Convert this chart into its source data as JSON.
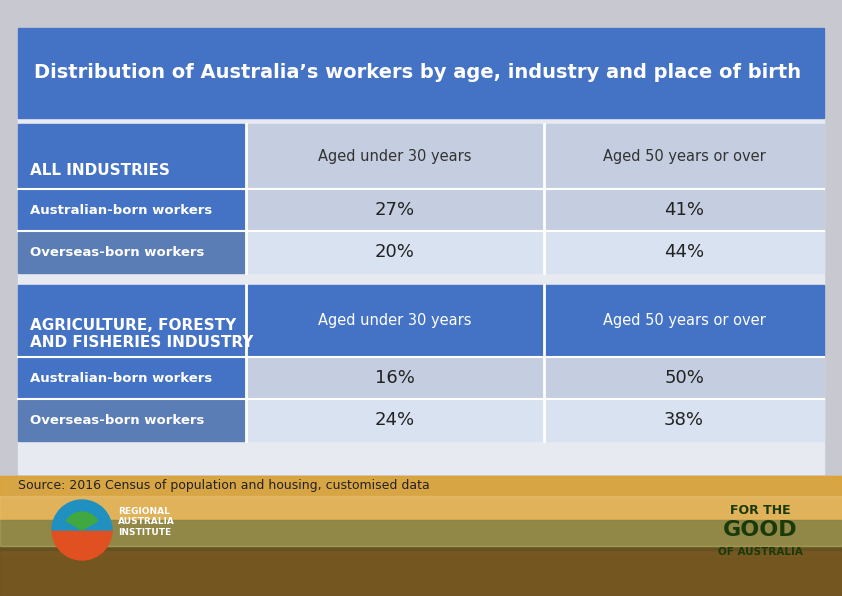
{
  "title": "Distribution of Australia’s workers by age, industry and place of birth",
  "title_bg_color": "#4472C4",
  "title_text_color": "#FFFFFF",
  "source_text": "Source: 2016 Census of population and housing, customised data",
  "outer_bg_color": "#C8C8D0",
  "table_bg_color": "#E8EAF0",
  "blue_header_bg": "#4472C4",
  "blue_header_text": "#FFFFFF",
  "light_blue_bg1": "#C5CEE0",
  "light_blue_bg2": "#D8E2F0",
  "medium_blue_label": "#5B7DB5",
  "data_text_color": "#222222",
  "col_header_text_color": "#333333",
  "table": {
    "section1_label": "ALL INDUSTRIES",
    "section2_label": "AGRICULTURE, FORESTY\nAND FISHERIES INDUSTRY",
    "col1_header": "Aged under 30 years",
    "col2_header": "Aged 50 years or over",
    "section1_rows": [
      {
        "label": "Australian-born workers",
        "col1": "27%",
        "col2": "41%"
      },
      {
        "label": "Overseas-born workers",
        "col1": "20%",
        "col2": "44%"
      }
    ],
    "section2_rows": [
      {
        "label": "Australian-born workers",
        "col1": "16%",
        "col2": "50%"
      },
      {
        "label": "Overseas-born workers",
        "col1": "24%",
        "col2": "38%"
      }
    ]
  },
  "landscape": {
    "sky_top": "#B8C8D8",
    "sky_bottom": "#D4A060",
    "land_color": "#8B7040",
    "tree_color": "#5A6830",
    "fog_color": "#E8C870"
  }
}
